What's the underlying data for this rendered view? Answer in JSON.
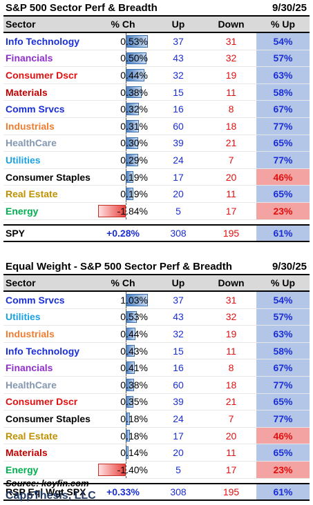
{
  "table1": {
    "title": "S&P 500 Sector Perf & Breadth",
    "date": "9/30/25",
    "headers": {
      "sector": "Sector",
      "pch": "% Ch",
      "up": "Up",
      "down": "Down",
      "pup": "% Up"
    },
    "rows": [
      {
        "sector": "Info Technology",
        "color": "#1a2ed6",
        "pch": "0.53%",
        "pch_value": 0.53,
        "up": "37",
        "down": "31",
        "pup": "54%",
        "hot": false
      },
      {
        "sector": "Financials",
        "color": "#8e2fc9",
        "pch": "0.50%",
        "pch_value": 0.5,
        "up": "43",
        "down": "32",
        "pup": "57%",
        "hot": false
      },
      {
        "sector": "Consumer Dscr",
        "color": "#e01010",
        "pch": "0.44%",
        "pch_value": 0.44,
        "up": "32",
        "down": "19",
        "pup": "63%",
        "hot": false
      },
      {
        "sector": "Materials",
        "color": "#c00000",
        "pch": "0.38%",
        "pch_value": 0.38,
        "up": "15",
        "down": "11",
        "pup": "58%",
        "hot": false
      },
      {
        "sector": "Comm Srvcs",
        "color": "#1a2ed6",
        "pch": "0.32%",
        "pch_value": 0.32,
        "up": "16",
        "down": "8",
        "pup": "67%",
        "hot": false
      },
      {
        "sector": "Industrials",
        "color": "#ed7d31",
        "pch": "0.31%",
        "pch_value": 0.31,
        "up": "60",
        "down": "18",
        "pup": "77%",
        "hot": false
      },
      {
        "sector": "HealthCare",
        "color": "#8497b0",
        "pch": "0.30%",
        "pch_value": 0.3,
        "up": "39",
        "down": "21",
        "pup": "65%",
        "hot": false
      },
      {
        "sector": "Utilities",
        "color": "#1ba1e2",
        "pch": "0.29%",
        "pch_value": 0.29,
        "up": "24",
        "down": "7",
        "pup": "77%",
        "hot": false
      },
      {
        "sector": "Consumer Staples",
        "color": "#000000",
        "pch": "0.19%",
        "pch_value": 0.19,
        "up": "17",
        "down": "20",
        "pup": "46%",
        "hot": true
      },
      {
        "sector": "Real Estate",
        "color": "#bf9000",
        "pch": "0.19%",
        "pch_value": 0.19,
        "up": "20",
        "down": "11",
        "pup": "65%",
        "hot": false
      },
      {
        "sector": "Energy",
        "color": "#00b050",
        "pch": "-1.84%",
        "pch_value": -1.84,
        "up": "5",
        "down": "17",
        "pup": "23%",
        "hot": true
      }
    ],
    "total": {
      "sector": "SPY",
      "pch": "+0.28%",
      "up": "308",
      "down": "195",
      "pup": "61%"
    }
  },
  "table2": {
    "title": "Equal Weight - S&P 500 Sector Perf & Breadth",
    "date": "9/30/25",
    "headers": {
      "sector": "Sector",
      "pch": "% Ch",
      "up": "Up",
      "down": "Down",
      "pup": "% Up"
    },
    "rows": [
      {
        "sector": "Comm Srvcs",
        "color": "#1a2ed6",
        "pch": "1.03%",
        "pch_value": 1.03,
        "up": "37",
        "down": "31",
        "pup": "54%",
        "hot": false
      },
      {
        "sector": "Utilities",
        "color": "#1ba1e2",
        "pch": "0.53%",
        "pch_value": 0.53,
        "up": "43",
        "down": "32",
        "pup": "57%",
        "hot": false
      },
      {
        "sector": "Industrials",
        "color": "#ed7d31",
        "pch": "0.44%",
        "pch_value": 0.44,
        "up": "32",
        "down": "19",
        "pup": "63%",
        "hot": false
      },
      {
        "sector": "Info Technology",
        "color": "#1a2ed6",
        "pch": "0.43%",
        "pch_value": 0.43,
        "up": "15",
        "down": "11",
        "pup": "58%",
        "hot": false
      },
      {
        "sector": "Financials",
        "color": "#8e2fc9",
        "pch": "0.41%",
        "pch_value": 0.41,
        "up": "16",
        "down": "8",
        "pup": "67%",
        "hot": false
      },
      {
        "sector": "HealthCare",
        "color": "#8497b0",
        "pch": "0.38%",
        "pch_value": 0.38,
        "up": "60",
        "down": "18",
        "pup": "77%",
        "hot": false
      },
      {
        "sector": "Consumer Dscr",
        "color": "#e01010",
        "pch": "0.35%",
        "pch_value": 0.35,
        "up": "39",
        "down": "21",
        "pup": "65%",
        "hot": false
      },
      {
        "sector": "Consumer Staples",
        "color": "#000000",
        "pch": "0.18%",
        "pch_value": 0.18,
        "up": "24",
        "down": "7",
        "pup": "77%",
        "hot": false
      },
      {
        "sector": "Real Estate",
        "color": "#bf9000",
        "pch": "0.18%",
        "pch_value": 0.18,
        "up": "17",
        "down": "20",
        "pup": "46%",
        "hot": true
      },
      {
        "sector": "Materials",
        "color": "#c00000",
        "pch": "0.14%",
        "pch_value": 0.14,
        "up": "20",
        "down": "11",
        "pup": "65%",
        "hot": false
      },
      {
        "sector": "Energy",
        "color": "#00b050",
        "pch": "-1.40%",
        "pch_value": -1.4,
        "up": "5",
        "down": "17",
        "pup": "23%",
        "hot": true
      }
    ],
    "total": {
      "sector": "RSP Eql Wgt SPX",
      "pch": "+0.33%",
      "up": "308",
      "down": "195",
      "pup": "61%"
    }
  },
  "footer": {
    "source": "Source: koyfin.com",
    "brand": "CappThesis, LLC"
  }
}
